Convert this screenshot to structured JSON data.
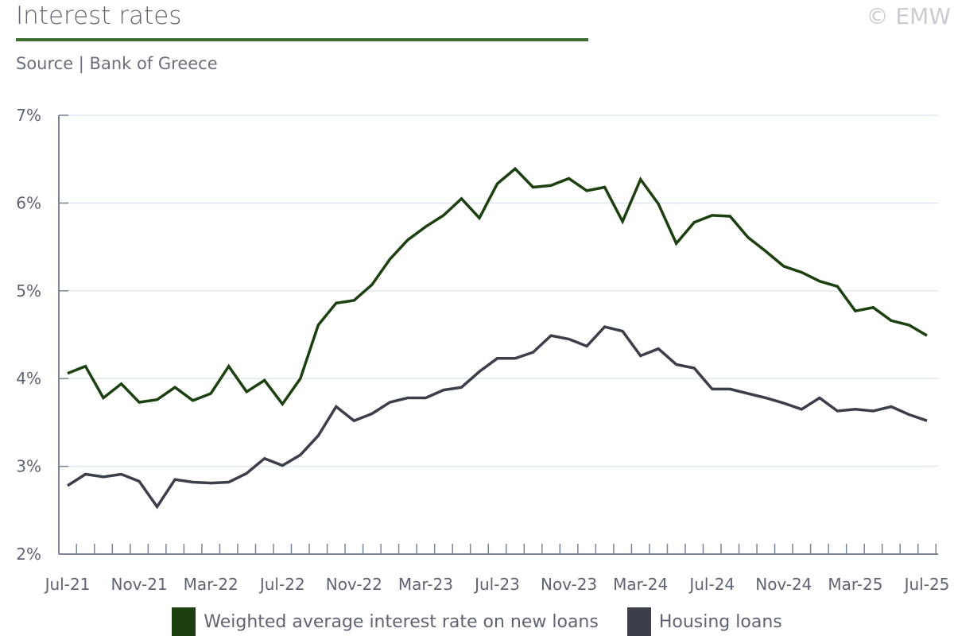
{
  "header": {
    "title": "Interest rates",
    "source": "Source | Bank of Greece",
    "copyright": "© EMW"
  },
  "colors": {
    "new_loans": "#1c4010",
    "housing": "#3c3f4a",
    "rule": "#3a6f2f",
    "grid": "#dfe7f1",
    "axis": "#7c8497"
  },
  "chart_data": {
    "type": "line",
    "title": "Interest rates",
    "xlabel": "",
    "ylabel": "",
    "ylim": [
      2,
      7
    ],
    "yticks": [
      "2%",
      "3%",
      "4%",
      "5%",
      "6%",
      "7%"
    ],
    "xtick_labels": [
      "Jul-21",
      "Nov-21",
      "Mar-22",
      "Jul-22",
      "Nov-22",
      "Mar-23",
      "Jul-23",
      "Nov-23",
      "Mar-24",
      "Jul-24",
      "Nov-24",
      "Mar-25",
      "Jul-25"
    ],
    "x_start": "Jul-21",
    "x_end": "Jul-25",
    "frequency": "monthly",
    "grid": true,
    "legend_position": "bottom",
    "series": [
      {
        "name": "Weighted average interest rate on new loans",
        "color": "#1c4010",
        "values": [
          4.06,
          4.14,
          3.78,
          3.94,
          3.73,
          3.76,
          3.9,
          3.75,
          3.83,
          4.14,
          3.85,
          3.98,
          3.71,
          4.0,
          4.61,
          4.86,
          4.89,
          5.07,
          5.36,
          5.58,
          5.73,
          5.86,
          6.05,
          5.83,
          6.22,
          6.39,
          6.18,
          6.2,
          6.28,
          6.14,
          6.18,
          5.79,
          6.27,
          5.99,
          5.54,
          5.78,
          5.86,
          5.85,
          5.61,
          5.45,
          5.28,
          5.21,
          5.11,
          5.05,
          4.77,
          4.81,
          4.66,
          4.61,
          4.49
        ]
      },
      {
        "name": "Housing loans",
        "color": "#3c3f4a",
        "values": [
          2.78,
          2.91,
          2.88,
          2.91,
          2.83,
          2.54,
          2.85,
          2.82,
          2.81,
          2.82,
          2.92,
          3.09,
          3.01,
          3.13,
          3.35,
          3.68,
          3.52,
          3.6,
          3.73,
          3.78,
          3.78,
          3.87,
          3.9,
          4.08,
          4.23,
          4.23,
          4.3,
          4.49,
          4.45,
          4.37,
          4.59,
          4.54,
          4.26,
          4.34,
          4.16,
          4.12,
          3.88,
          3.88,
          3.83,
          3.78,
          3.72,
          3.65,
          3.78,
          3.63,
          3.65,
          3.63,
          3.68,
          3.59,
          3.52
        ]
      }
    ]
  }
}
